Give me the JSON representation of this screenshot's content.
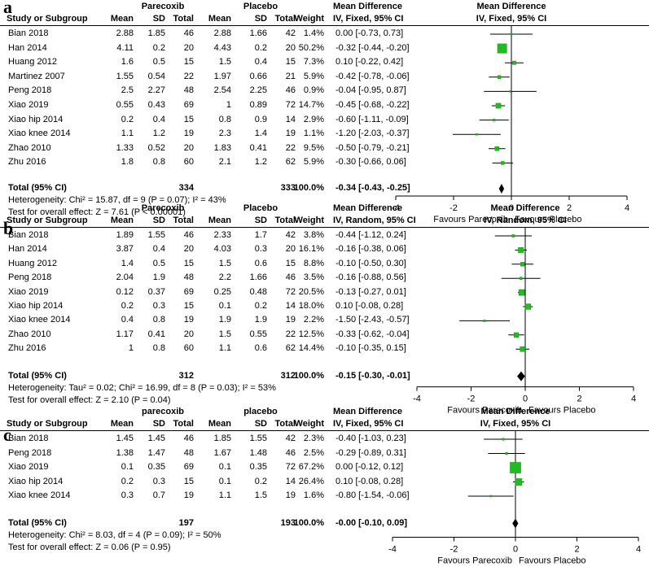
{
  "chart_data": [
    {
      "type": "forest",
      "panel_label": "a",
      "headers": {
        "group1": "Parecoxib",
        "group2": "Placebo",
        "study": "Study or Subgroup",
        "mean": "Mean",
        "sd": "SD",
        "total": "Total",
        "weight": "Weight",
        "effect_title": "Mean Difference",
        "effect_method": "IV, Fixed, 95% CI",
        "plot_title": "Mean Difference",
        "plot_method": "IV, Fixed, 95% CI"
      },
      "studies": [
        {
          "name": "Bian 2018",
          "m1": "2.88",
          "sd1": "1.85",
          "n1": "46",
          "m2": "2.88",
          "sd2": "1.66",
          "n2": "42",
          "weight": "1.4%",
          "ci_text": "0.00 [-0.73, 0.73]",
          "md": 0.0,
          "lo": -0.73,
          "hi": 0.73,
          "w": 1.4
        },
        {
          "name": "Han 2014",
          "m1": "4.11",
          "sd1": "0.2",
          "n1": "20",
          "m2": "4.43",
          "sd2": "0.2",
          "n2": "20",
          "weight": "50.2%",
          "ci_text": "-0.32 [-0.44, -0.20]",
          "md": -0.32,
          "lo": -0.44,
          "hi": -0.2,
          "w": 50.2
        },
        {
          "name": "Huang 2012",
          "m1": "1.6",
          "sd1": "0.5",
          "n1": "15",
          "m2": "1.5",
          "sd2": "0.4",
          "n2": "15",
          "weight": "7.3%",
          "ci_text": "0.10 [-0.22, 0.42]",
          "md": 0.1,
          "lo": -0.22,
          "hi": 0.42,
          "w": 7.3
        },
        {
          "name": "Martinez 2007",
          "m1": "1.55",
          "sd1": "0.54",
          "n1": "22",
          "m2": "1.97",
          "sd2": "0.66",
          "n2": "21",
          "weight": "5.9%",
          "ci_text": "-0.42 [-0.78, -0.06]",
          "md": -0.42,
          "lo": -0.78,
          "hi": -0.06,
          "w": 5.9
        },
        {
          "name": "Peng 2018",
          "m1": "2.5",
          "sd1": "2.27",
          "n1": "48",
          "m2": "2.54",
          "sd2": "2.25",
          "n2": "46",
          "weight": "0.9%",
          "ci_text": "-0.04 [-0.95, 0.87]",
          "md": -0.04,
          "lo": -0.95,
          "hi": 0.87,
          "w": 0.9
        },
        {
          "name": "Xiao 2019",
          "m1": "0.55",
          "sd1": "0.43",
          "n1": "69",
          "m2": "1",
          "sd2": "0.89",
          "n2": "72",
          "weight": "14.7%",
          "ci_text": "-0.45 [-0.68, -0.22]",
          "md": -0.45,
          "lo": -0.68,
          "hi": -0.22,
          "w": 14.7
        },
        {
          "name": "Xiao hip  2014",
          "m1": "0.2",
          "sd1": "0.4",
          "n1": "15",
          "m2": "0.8",
          "sd2": "0.9",
          "n2": "14",
          "weight": "2.9%",
          "ci_text": "-0.60 [-1.11, -0.09]",
          "md": -0.6,
          "lo": -1.11,
          "hi": -0.09,
          "w": 2.9
        },
        {
          "name": "Xiao knee 2014",
          "m1": "1.1",
          "sd1": "1.2",
          "n1": "19",
          "m2": "2.3",
          "sd2": "1.4",
          "n2": "19",
          "weight": "1.1%",
          "ci_text": "-1.20 [-2.03, -0.37]",
          "md": -1.2,
          "lo": -2.03,
          "hi": -0.37,
          "w": 1.1
        },
        {
          "name": "Zhao 2010",
          "m1": "1.33",
          "sd1": "0.52",
          "n1": "20",
          "m2": "1.83",
          "sd2": "0.41",
          "n2": "22",
          "weight": "9.5%",
          "ci_text": "-0.50 [-0.79, -0.21]",
          "md": -0.5,
          "lo": -0.79,
          "hi": -0.21,
          "w": 9.5
        },
        {
          "name": "Zhu 2016",
          "m1": "1.8",
          "sd1": "0.8",
          "n1": "60",
          "m2": "2.1",
          "sd2": "1.2",
          "n2": "62",
          "weight": "5.9%",
          "ci_text": "-0.30 [-0.66, 0.06]",
          "md": -0.3,
          "lo": -0.66,
          "hi": 0.06,
          "w": 5.9
        }
      ],
      "total": {
        "label": "Total (95% CI)",
        "n1": "334",
        "n2": "333",
        "weight": "100.0%",
        "ci_text": "-0.34 [-0.43, -0.25]",
        "md": -0.34,
        "lo": -0.43,
        "hi": -0.25
      },
      "heterogeneity": "Heterogeneity: Chi² = 15.87, df = 9 (P = 0.07); I² = 43%",
      "overall_effect": "Test for overall effect: Z = 7.61 (P < 0.00001)",
      "x_ticks": [
        "-4",
        "-2",
        "0",
        "2",
        "4"
      ],
      "xlim": [
        -4,
        4
      ],
      "favours_left": "Favours Parecoxib",
      "favours_right": "Favours Placebo"
    },
    {
      "type": "forest",
      "panel_label": "b",
      "headers": {
        "group1": "Parecoxib",
        "group2": "Placebo",
        "study": "Study or Subgroup",
        "mean": "Mean",
        "sd": "SD",
        "total": "Total",
        "weight": "Weight",
        "effect_title": "Mean Difference",
        "effect_method": "IV, Random, 95% CI",
        "plot_title": "Mean Difference",
        "plot_method": "IV, Random, 95% CI"
      },
      "studies": [
        {
          "name": "Bian 2018",
          "m1": "1.89",
          "sd1": "1.55",
          "n1": "46",
          "m2": "2.33",
          "sd2": "1.7",
          "n2": "42",
          "weight": "3.8%",
          "ci_text": "-0.44 [-1.12, 0.24]",
          "md": -0.44,
          "lo": -1.12,
          "hi": 0.24,
          "w": 3.8
        },
        {
          "name": "Han 2014",
          "m1": "3.87",
          "sd1": "0.4",
          "n1": "20",
          "m2": "4.03",
          "sd2": "0.3",
          "n2": "20",
          "weight": "16.1%",
          "ci_text": "-0.16 [-0.38, 0.06]",
          "md": -0.16,
          "lo": -0.38,
          "hi": 0.06,
          "w": 16.1
        },
        {
          "name": "Huang 2012",
          "m1": "1.4",
          "sd1": "0.5",
          "n1": "15",
          "m2": "1.5",
          "sd2": "0.6",
          "n2": "15",
          "weight": "8.8%",
          "ci_text": "-0.10 [-0.50, 0.30]",
          "md": -0.1,
          "lo": -0.5,
          "hi": 0.3,
          "w": 8.8
        },
        {
          "name": "Peng 2018",
          "m1": "2.04",
          "sd1": "1.9",
          "n1": "48",
          "m2": "2.2",
          "sd2": "1.66",
          "n2": "46",
          "weight": "3.5%",
          "ci_text": "-0.16 [-0.88, 0.56]",
          "md": -0.16,
          "lo": -0.88,
          "hi": 0.56,
          "w": 3.5
        },
        {
          "name": "Xiao 2019",
          "m1": "0.12",
          "sd1": "0.37",
          "n1": "69",
          "m2": "0.25",
          "sd2": "0.48",
          "n2": "72",
          "weight": "20.5%",
          "ci_text": "-0.13 [-0.27, 0.01]",
          "md": -0.13,
          "lo": -0.27,
          "hi": 0.01,
          "w": 20.5
        },
        {
          "name": "Xiao hip  2014",
          "m1": "0.2",
          "sd1": "0.3",
          "n1": "15",
          "m2": "0.1",
          "sd2": "0.2",
          "n2": "14",
          "weight": "18.0%",
          "ci_text": "0.10 [-0.08, 0.28]",
          "md": 0.1,
          "lo": -0.08,
          "hi": 0.28,
          "w": 18.0
        },
        {
          "name": "Xiao knee 2014",
          "m1": "0.4",
          "sd1": "0.8",
          "n1": "19",
          "m2": "1.9",
          "sd2": "1.9",
          "n2": "19",
          "weight": "2.2%",
          "ci_text": "-1.50 [-2.43, -0.57]",
          "md": -1.5,
          "lo": -2.43,
          "hi": -0.57,
          "w": 2.2
        },
        {
          "name": "Zhao 2010",
          "m1": "1.17",
          "sd1": "0.41",
          "n1": "20",
          "m2": "1.5",
          "sd2": "0.55",
          "n2": "22",
          "weight": "12.5%",
          "ci_text": "-0.33 [-0.62, -0.04]",
          "md": -0.33,
          "lo": -0.62,
          "hi": -0.04,
          "w": 12.5
        },
        {
          "name": "Zhu 2016",
          "m1": "1",
          "sd1": "0.8",
          "n1": "60",
          "m2": "1.1",
          "sd2": "0.6",
          "n2": "62",
          "weight": "14.4%",
          "ci_text": "-0.10 [-0.35, 0.15]",
          "md": -0.1,
          "lo": -0.35,
          "hi": 0.15,
          "w": 14.4
        }
      ],
      "total": {
        "label": "Total (95% CI)",
        "n1": "312",
        "n2": "312",
        "weight": "100.0%",
        "ci_text": "-0.15 [-0.30, -0.01]",
        "md": -0.15,
        "lo": -0.3,
        "hi": -0.01
      },
      "heterogeneity": "Heterogeneity: Tau² = 0.02; Chi² = 16.99, df = 8 (P = 0.03); I² = 53%",
      "overall_effect": "Test for overall effect: Z = 2.10 (P = 0.04)",
      "x_ticks": [
        "-4",
        "-2",
        "0",
        "2",
        "4"
      ],
      "xlim": [
        -4,
        4
      ],
      "favours_left": "Favours Parecoxib",
      "favours_right": "Favours Placebo"
    },
    {
      "type": "forest",
      "panel_label": "c",
      "headers": {
        "group1": "parecoxib",
        "group2": "placebo",
        "study": "Study or Subgroup",
        "mean": "Mean",
        "sd": "SD",
        "total": "Total",
        "weight": "Weight",
        "effect_title": "Mean Difference",
        "effect_method": "IV, Fixed, 95% CI",
        "plot_title": "Mean Difference",
        "plot_method": "IV, Fixed, 95% CI"
      },
      "studies": [
        {
          "name": "Bian 2018",
          "m1": "1.45",
          "sd1": "1.45",
          "n1": "46",
          "m2": "1.85",
          "sd2": "1.55",
          "n2": "42",
          "weight": "2.3%",
          "ci_text": "-0.40 [-1.03, 0.23]",
          "md": -0.4,
          "lo": -1.03,
          "hi": 0.23,
          "w": 2.3
        },
        {
          "name": "Peng 2018",
          "m1": "1.38",
          "sd1": "1.47",
          "n1": "48",
          "m2": "1.67",
          "sd2": "1.48",
          "n2": "46",
          "weight": "2.5%",
          "ci_text": "-0.29 [-0.89, 0.31]",
          "md": -0.29,
          "lo": -0.89,
          "hi": 0.31,
          "w": 2.5
        },
        {
          "name": "Xiao 2019",
          "m1": "0.1",
          "sd1": "0.35",
          "n1": "69",
          "m2": "0.1",
          "sd2": "0.35",
          "n2": "72",
          "weight": "67.2%",
          "ci_text": "0.00 [-0.12, 0.12]",
          "md": 0.0,
          "lo": -0.12,
          "hi": 0.12,
          "w": 67.2
        },
        {
          "name": "Xiao hip  2014",
          "m1": "0.2",
          "sd1": "0.3",
          "n1": "15",
          "m2": "0.1",
          "sd2": "0.2",
          "n2": "14",
          "weight": "26.4%",
          "ci_text": "0.10 [-0.08, 0.28]",
          "md": 0.1,
          "lo": -0.08,
          "hi": 0.28,
          "w": 26.4
        },
        {
          "name": "Xiao knee 2014",
          "m1": "0.3",
          "sd1": "0.7",
          "n1": "19",
          "m2": "1.1",
          "sd2": "1.5",
          "n2": "19",
          "weight": "1.6%",
          "ci_text": "-0.80 [-1.54, -0.06]",
          "md": -0.8,
          "lo": -1.54,
          "hi": -0.06,
          "w": 1.6
        }
      ],
      "total": {
        "label": "Total (95% CI)",
        "n1": "197",
        "n2": "193",
        "weight": "100.0%",
        "ci_text": "-0.00 [-0.10, 0.09]",
        "md": -0.0,
        "lo": -0.1,
        "hi": 0.09
      },
      "heterogeneity": "Heterogeneity: Chi² = 8.03, df = 4 (P = 0.09); I² = 50%",
      "overall_effect": "Test for overall effect: Z = 0.06 (P = 0.95)",
      "x_ticks": [
        "-4",
        "-2",
        "0",
        "2",
        "4"
      ],
      "xlim": [
        -4,
        4
      ],
      "favours_left": "Favours Parecoxib",
      "favours_right": "Favours Placebo"
    }
  ],
  "colors": {
    "marker": "#22bb22",
    "marker_edge": "#119911",
    "line": "#000000"
  }
}
